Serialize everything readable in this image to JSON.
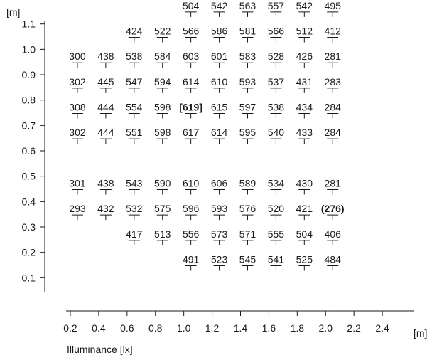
{
  "chart_data": {
    "type": "table",
    "x_unit": "[m]",
    "y_unit": "[m]",
    "xlabel": "Illuminance [lx]",
    "x_ticks": [
      "0.2",
      "0.4",
      "0.6",
      "0.8",
      "1.0",
      "1.2",
      "1.4",
      "1.6",
      "1.8",
      "2.0",
      "2.2",
      "2.4"
    ],
    "y_ticks": [
      "0.1",
      "0.2",
      "0.3",
      "0.4",
      "0.5",
      "0.6",
      "0.7",
      "0.8",
      "0.9",
      "1.0",
      "1.1"
    ],
    "xlim": [
      0.17,
      2.62
    ],
    "ylim": [
      0.0,
      1.13
    ],
    "cell_x": [
      0.25,
      0.45,
      0.65,
      0.85,
      1.05,
      1.25,
      1.45,
      1.65,
      1.85,
      2.05,
      2.25,
      2.45
    ],
    "rows": [
      {
        "y": 1.15,
        "values": [
          null,
          null,
          "504",
          "542",
          "563",
          "557",
          "542",
          "495",
          null,
          null,
          null,
          null
        ]
      },
      {
        "y": 1.05,
        "values": [
          null,
          "424",
          "522",
          "566",
          "586",
          "581",
          "566",
          "512",
          "412",
          null,
          null,
          null
        ]
      },
      {
        "y": 0.95,
        "values": [
          "300",
          "438",
          "538",
          "584",
          "603",
          "601",
          "583",
          "528",
          "426",
          "281",
          null,
          null
        ]
      },
      {
        "y": 0.85,
        "values": [
          "302",
          "445",
          "547",
          "594",
          "614",
          "610",
          "593",
          "537",
          "431",
          "283",
          null,
          null
        ]
      },
      {
        "y": 0.75,
        "values": [
          "308",
          "444",
          "554",
          "598",
          "[619]",
          "615",
          "597",
          "538",
          "434",
          "284",
          null,
          null
        ]
      },
      {
        "y": 0.65,
        "values": [
          "302",
          "444",
          "551",
          "598",
          "617",
          "614",
          "595",
          "540",
          "433",
          "284",
          null,
          null
        ]
      },
      {
        "y": 0.45,
        "values": [
          "301",
          "438",
          "543",
          "590",
          "610",
          "606",
          "589",
          "534",
          "430",
          "281",
          null,
          null
        ]
      },
      {
        "y": 0.35,
        "values": [
          "293",
          "432",
          "532",
          "575",
          "596",
          "593",
          "576",
          "520",
          "421",
          "(276)",
          null,
          null
        ]
      },
      {
        "y": 0.25,
        "values": [
          null,
          "417",
          "513",
          "556",
          "573",
          "571",
          "555",
          "504",
          "406",
          null,
          null,
          null
        ]
      },
      {
        "y": 0.15,
        "values": [
          null,
          null,
          "491",
          "523",
          "545",
          "541",
          "525",
          "484",
          null,
          null,
          null,
          null
        ]
      }
    ],
    "row_start_col": [
      2,
      1,
      0,
      0,
      0,
      0,
      0,
      0,
      1,
      2
    ],
    "emphasized": [
      "[619]",
      "(276)"
    ],
    "grid": false,
    "colors": {
      "ink": "#1a1a1a",
      "background": "#ffffff"
    }
  }
}
